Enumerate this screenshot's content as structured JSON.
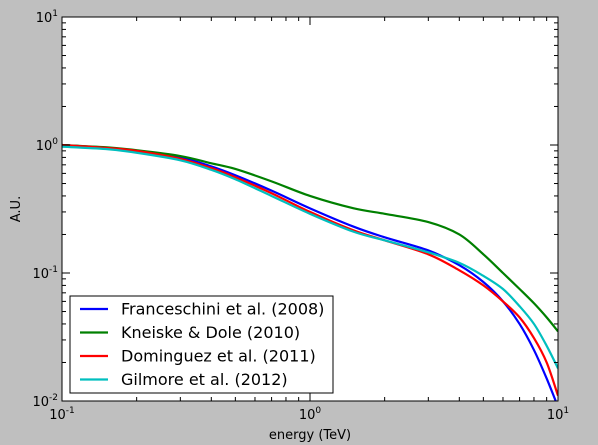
{
  "chart_data": {
    "type": "line",
    "title": "",
    "xlabel": "energy (TeV)",
    "ylabel": "A.U.",
    "xscale": "log",
    "yscale": "log",
    "xlim": [
      0.1,
      10
    ],
    "ylim": [
      0.01,
      10
    ],
    "x_ticks": [
      {
        "value": 0.1,
        "base": "10",
        "exp": "-1"
      },
      {
        "value": 1,
        "base": "10",
        "exp": "0"
      },
      {
        "value": 10,
        "base": "10",
        "exp": "1"
      }
    ],
    "y_ticks": [
      {
        "value": 0.01,
        "base": "10",
        "exp": "-2"
      },
      {
        "value": 0.1,
        "base": "10",
        "exp": "-1"
      },
      {
        "value": 1,
        "base": "10",
        "exp": "0"
      },
      {
        "value": 10,
        "base": "10",
        "exp": "1"
      }
    ],
    "grid": false,
    "legend_position": "lower-left",
    "series": [
      {
        "name": "Franceschini et al. (2008)",
        "color": "#0000ff",
        "x": [
          0.1,
          0.15,
          0.2,
          0.3,
          0.4,
          0.5,
          0.7,
          1.0,
          1.5,
          2.0,
          3.0,
          4.0,
          5.0,
          6.0,
          7.0,
          8.0,
          9.0,
          10.0
        ],
        "y": [
          1.0,
          0.95,
          0.9,
          0.8,
          0.68,
          0.58,
          0.44,
          0.32,
          0.23,
          0.19,
          0.15,
          0.115,
          0.085,
          0.06,
          0.04,
          0.025,
          0.015,
          0.009
        ]
      },
      {
        "name": "Kneiske & Dole (2010)",
        "color": "#008000",
        "x": [
          0.1,
          0.15,
          0.2,
          0.3,
          0.4,
          0.5,
          0.7,
          1.0,
          1.5,
          2.0,
          3.0,
          4.0,
          5.0,
          6.0,
          7.0,
          8.0,
          9.0,
          10.0
        ],
        "y": [
          1.0,
          0.96,
          0.91,
          0.82,
          0.72,
          0.65,
          0.52,
          0.4,
          0.32,
          0.29,
          0.25,
          0.2,
          0.14,
          0.1,
          0.075,
          0.058,
          0.045,
          0.035
        ]
      },
      {
        "name": "Dominguez et al. (2011)",
        "color": "#ff0000",
        "x": [
          0.1,
          0.15,
          0.2,
          0.3,
          0.4,
          0.5,
          0.7,
          1.0,
          1.5,
          2.0,
          3.0,
          4.0,
          5.0,
          6.0,
          7.0,
          8.0,
          9.0,
          10.0
        ],
        "y": [
          1.0,
          0.95,
          0.9,
          0.78,
          0.66,
          0.56,
          0.42,
          0.3,
          0.215,
          0.18,
          0.14,
          0.105,
          0.08,
          0.06,
          0.045,
          0.031,
          0.02,
          0.011
        ]
      },
      {
        "name": "Gilmore et al. (2012)",
        "color": "#00bfbf",
        "x": [
          0.1,
          0.15,
          0.2,
          0.3,
          0.4,
          0.5,
          0.7,
          1.0,
          1.5,
          2.0,
          3.0,
          4.0,
          5.0,
          6.0,
          7.0,
          8.0,
          9.0,
          10.0
        ],
        "y": [
          0.97,
          0.93,
          0.87,
          0.76,
          0.64,
          0.54,
          0.4,
          0.29,
          0.21,
          0.18,
          0.145,
          0.12,
          0.095,
          0.075,
          0.055,
          0.04,
          0.027,
          0.018
        ]
      }
    ]
  }
}
